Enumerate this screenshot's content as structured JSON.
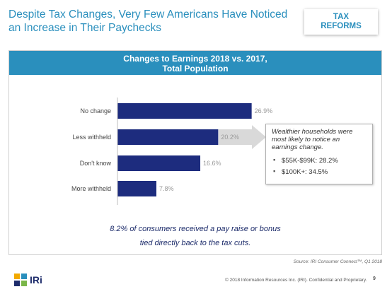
{
  "slide": {
    "title": "Despite Tax Changes, Very Few Americans Have Noticed an Increase in Their Paychecks",
    "tag_line1": "TAX",
    "tag_line2": "REFORMS"
  },
  "panel": {
    "header_line1": "Changes to Earnings 2018 vs. 2017,",
    "header_line2": "Total Population"
  },
  "chart_data": {
    "type": "bar",
    "orientation": "horizontal",
    "categories": [
      "No change",
      "Less withheld",
      "Don't know",
      "More withheld"
    ],
    "values": [
      26.9,
      20.2,
      16.6,
      7.8
    ],
    "value_labels": [
      "26.9%",
      "20.2%",
      "16.6%",
      "7.8%"
    ],
    "title": "Changes to Earnings 2018 vs. 2017, Total Population",
    "xlabel": "",
    "ylabel": "",
    "grid": false,
    "bar_color": "#1d2c7e"
  },
  "callout": {
    "text": "Wealthier households were most likely to notice an earnings change.",
    "bullets": [
      "$55K-$99K: 28.2%",
      "$100K+: 34.5%"
    ]
  },
  "footnote": {
    "line1": "8.2% of consumers received a pay raise or bonus",
    "line2": "tied directly back to the tax cuts."
  },
  "source": "Source: IRI Consumer Connect™, Q1 2018",
  "footer": {
    "logo_text": "IRi",
    "copyright": "© 2018 Information Resources Inc. (IRI). Confidential and Proprietary.",
    "page_number": "9"
  },
  "colors": {
    "accent": "#2a8fbd",
    "bar": "#1d2c7e",
    "callout_arrow": "#d9d9d9"
  }
}
